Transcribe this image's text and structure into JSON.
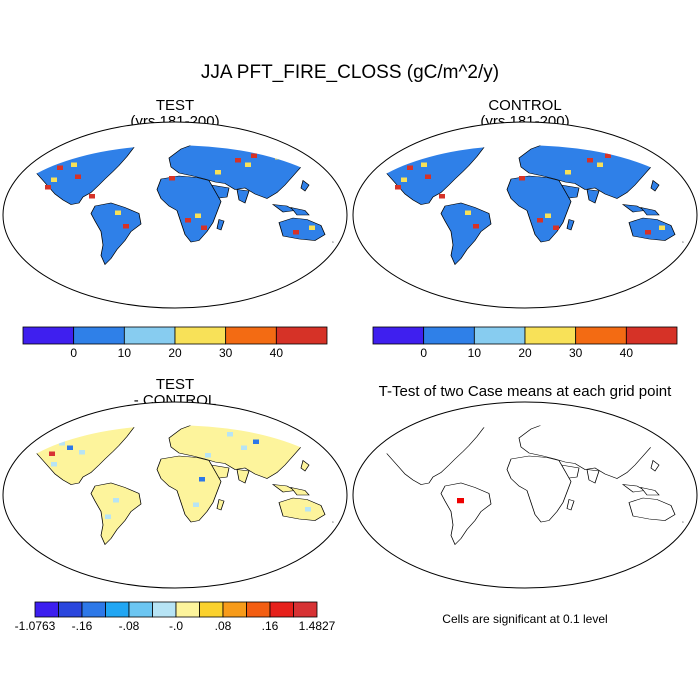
{
  "title": "JJA PFT_FIRE_CLOSS (gC/m^2/y)",
  "panels": {
    "test": {
      "title": "TEST",
      "subtitle": "(yrs 181-200)"
    },
    "control": {
      "title": "CONTROL",
      "subtitle": "(yrs 181-200)"
    },
    "diff": {
      "title": "TEST",
      "subtitle": "- CONTROL"
    },
    "ttest": {
      "title": "T-Test of two Case means at each grid point",
      "note": "Cells are significant at 0.1 level"
    }
  },
  "colorbars": {
    "abs": {
      "colors": [
        "#3f1fef",
        "#2f80e8",
        "#87ccf0",
        "#f8e158",
        "#f36b13",
        "#d63227"
      ],
      "labels": [
        "0",
        "10",
        "20",
        "30",
        "40"
      ]
    },
    "diff": {
      "colors": [
        "#3c1eef",
        "#2a46dd",
        "#2d78e8",
        "#21a6f3",
        "#6cc6f2",
        "#b7e4f5",
        "#fdf49c",
        "#fad12d",
        "#f79b1a",
        "#f35e12",
        "#e6201b",
        "#d73234"
      ],
      "labels": [
        "-1.0763",
        "-.16",
        "-.08",
        "-.0",
        ".08",
        ".16",
        "1.4827"
      ]
    }
  },
  "map_colors": {
    "ocean": "#ffffff",
    "land_abs": "#2f80e8",
    "land_diff": "#fdf49c",
    "coast": "#000000",
    "significant": "#ee0000"
  }
}
